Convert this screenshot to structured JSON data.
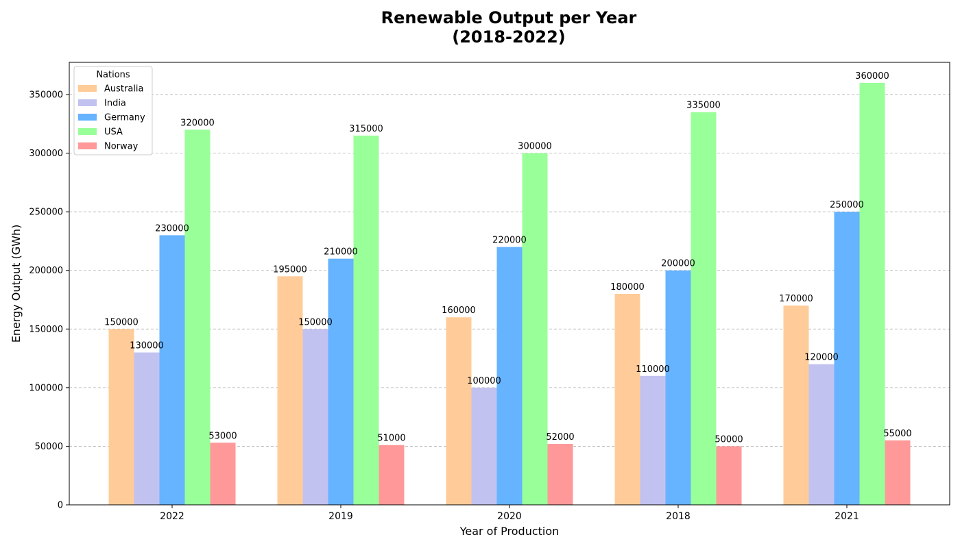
{
  "chart_data": {
    "type": "bar",
    "title_lines": [
      "Renewable Output per Year",
      "(2018-2022)"
    ],
    "xlabel": "Year of Production",
    "ylabel": "Energy Output (GWh)",
    "categories": [
      "2022",
      "2019",
      "2020",
      "2018",
      "2021"
    ],
    "ylim": [
      0,
      377500
    ],
    "yticks": [
      0,
      50000,
      100000,
      150000,
      200000,
      250000,
      300000,
      350000
    ],
    "grid": "y-dashed",
    "legend": {
      "title": "Nations",
      "placement": "top-left"
    },
    "series": [
      {
        "name": "Australia",
        "color": "#ffcc99",
        "values": [
          150000,
          195000,
          160000,
          180000,
          170000
        ]
      },
      {
        "name": "India",
        "color": "#c2c2f0",
        "values": [
          130000,
          150000,
          100000,
          110000,
          120000
        ]
      },
      {
        "name": "Germany",
        "color": "#66b3ff",
        "values": [
          230000,
          210000,
          220000,
          200000,
          250000
        ]
      },
      {
        "name": "USA",
        "color": "#99ff99",
        "values": [
          320000,
          315000,
          300000,
          335000,
          360000
        ]
      },
      {
        "name": "Norway",
        "color": "#ff9999",
        "values": [
          53000,
          51000,
          52000,
          50000,
          55000
        ]
      }
    ]
  }
}
